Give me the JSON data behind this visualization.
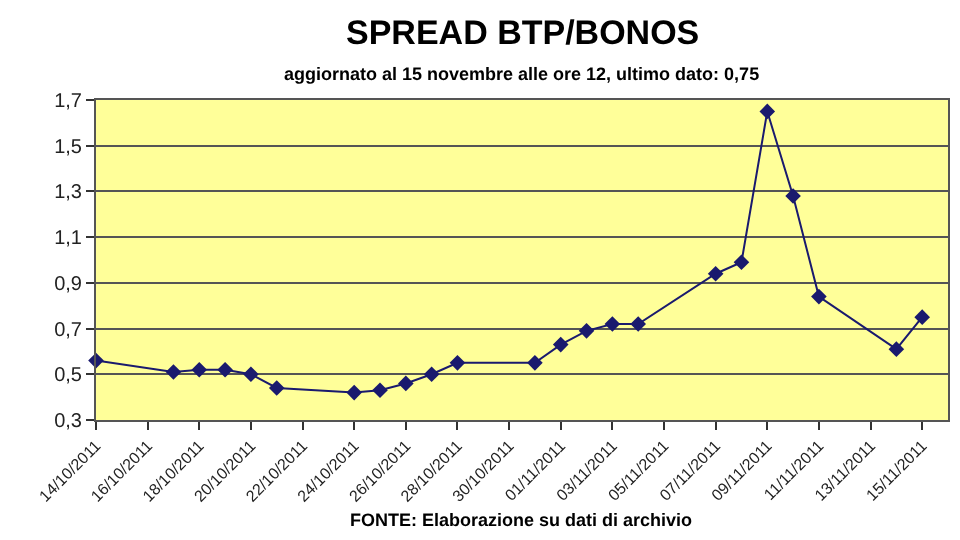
{
  "chart_data": {
    "type": "line",
    "title": "SPREAD BTP/BONOS",
    "subtitle": "aggiornato al 15 novembre alle ore 12, ultimo dato: 0,75",
    "annotations": [
      "FONTE: Elaborazione su dati di archivio"
    ],
    "x": [
      "2011-10-14",
      "2011-10-17",
      "2011-10-18",
      "2011-10-19",
      "2011-10-20",
      "2011-10-21",
      "2011-10-24",
      "2011-10-25",
      "2011-10-26",
      "2011-10-27",
      "2011-10-28",
      "2011-10-31",
      "2011-11-01",
      "2011-11-02",
      "2011-11-03",
      "2011-11-04",
      "2011-11-07",
      "2011-11-08",
      "2011-11-09",
      "2011-11-10",
      "2011-11-11",
      "2011-11-14",
      "2011-11-15"
    ],
    "series": [
      {
        "color": "#1a1a6e",
        "values": [
          0.56,
          0.51,
          0.52,
          0.52,
          0.5,
          0.44,
          0.42,
          0.43,
          0.46,
          0.5,
          0.55,
          0.55,
          0.63,
          0.69,
          0.72,
          0.72,
          0.94,
          0.99,
          1.65,
          1.28,
          0.84,
          0.61,
          0.75
        ]
      }
    ],
    "xlim": [
      "2011-10-14",
      "2011-11-16"
    ],
    "xticks": [
      {
        "value": "2011-10-14",
        "label": "14/10/2011"
      },
      {
        "value": "2011-10-16",
        "label": "16/10/2011"
      },
      {
        "value": "2011-10-18",
        "label": "18/10/2011"
      },
      {
        "value": "2011-10-20",
        "label": "20/10/2011"
      },
      {
        "value": "2011-10-22",
        "label": "22/10/2011"
      },
      {
        "value": "2011-10-24",
        "label": "24/10/2011"
      },
      {
        "value": "2011-10-26",
        "label": "26/10/2011"
      },
      {
        "value": "2011-10-28",
        "label": "28/10/2011"
      },
      {
        "value": "2011-10-30",
        "label": "30/10/2011"
      },
      {
        "value": "2011-11-01",
        "label": "01/11/2011"
      },
      {
        "value": "2011-11-03",
        "label": "03/11/2011"
      },
      {
        "value": "2011-11-05",
        "label": "05/11/2011"
      },
      {
        "value": "2011-11-07",
        "label": "07/11/2011"
      },
      {
        "value": "2011-11-09",
        "label": "09/11/2011"
      },
      {
        "value": "2011-11-11",
        "label": "11/11/2011"
      },
      {
        "value": "2011-11-13",
        "label": "13/11/2011"
      },
      {
        "value": "2011-11-15",
        "label": "15/11/2011"
      }
    ],
    "ylim": [
      0.3,
      1.7
    ],
    "yticks": [
      {
        "value": 0.3,
        "label": "0,3"
      },
      {
        "value": 0.5,
        "label": "0,5"
      },
      {
        "value": 0.7,
        "label": "0,7"
      },
      {
        "value": 0.9,
        "label": "0,9"
      },
      {
        "value": 1.1,
        "label": "1,1"
      },
      {
        "value": 1.3,
        "label": "1,3"
      },
      {
        "value": 1.5,
        "label": "1,5"
      },
      {
        "value": 1.7,
        "label": "1,7"
      }
    ],
    "grid": "y",
    "marker": "diamond",
    "line_style": "solid"
  }
}
